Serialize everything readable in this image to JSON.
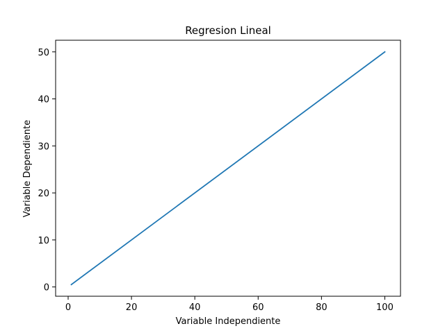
{
  "chart_data": {
    "type": "line",
    "title": "Regresion Lineal",
    "xlabel": "Variable Independiente",
    "ylabel": "Variable Dependiente",
    "xlim": [
      -3.95,
      104.95
    ],
    "ylim": [
      -1.975,
      52.475
    ],
    "xticks": [
      0,
      20,
      40,
      60,
      80,
      100
    ],
    "yticks": [
      0,
      10,
      20,
      30,
      40,
      50
    ],
    "grid": false,
    "series": [
      {
        "color": "#1f77b4",
        "x": [
          1,
          100
        ],
        "y": [
          0.5,
          50
        ]
      }
    ]
  }
}
